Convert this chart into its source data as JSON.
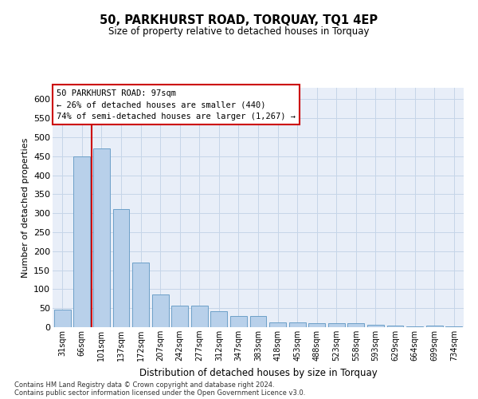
{
  "title": "50, PARKHURST ROAD, TORQUAY, TQ1 4EP",
  "subtitle": "Size of property relative to detached houses in Torquay",
  "xlabel": "Distribution of detached houses by size in Torquay",
  "ylabel": "Number of detached properties",
  "categories": [
    "31sqm",
    "66sqm",
    "101sqm",
    "137sqm",
    "172sqm",
    "207sqm",
    "242sqm",
    "277sqm",
    "312sqm",
    "347sqm",
    "383sqm",
    "418sqm",
    "453sqm",
    "488sqm",
    "523sqm",
    "558sqm",
    "593sqm",
    "629sqm",
    "664sqm",
    "699sqm",
    "734sqm"
  ],
  "values": [
    47,
    450,
    470,
    310,
    170,
    87,
    57,
    57,
    42,
    30,
    30,
    13,
    12,
    10,
    10,
    10,
    7,
    5,
    2,
    5,
    3
  ],
  "bar_color": "#b8d0ea",
  "bar_edge_color": "#6ca0c8",
  "grid_color": "#c5d5e8",
  "bg_color": "#e8eef8",
  "annotation_text": "50 PARKHURST ROAD: 97sqm\n← 26% of detached houses are smaller (440)\n74% of semi-detached houses are larger (1,267) →",
  "vline_after_bar": 1,
  "vline_color": "#cc0000",
  "box_color": "#cc0000",
  "footer1": "Contains HM Land Registry data © Crown copyright and database right 2024.",
  "footer2": "Contains public sector information licensed under the Open Government Licence v3.0.",
  "ylim": [
    0,
    630
  ],
  "yticks": [
    0,
    50,
    100,
    150,
    200,
    250,
    300,
    350,
    400,
    450,
    500,
    550,
    600
  ]
}
